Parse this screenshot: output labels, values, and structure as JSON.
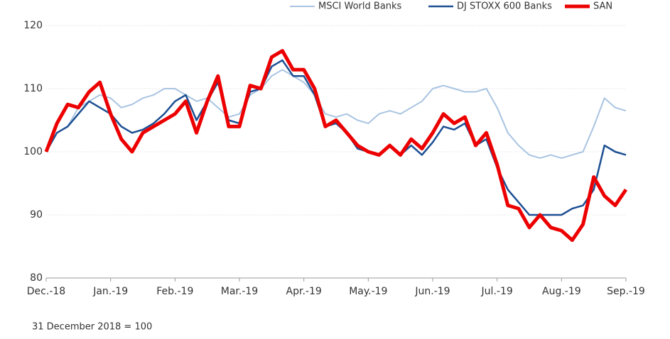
{
  "chart_data": {
    "type": "line",
    "note": "31 December 2018 = 100",
    "categories": [
      "Dec.-18",
      null,
      null,
      null,
      null,
      null,
      "Jan.-19",
      null,
      null,
      null,
      null,
      null,
      "Feb.-19",
      null,
      null,
      null,
      null,
      null,
      "Mar.-19",
      null,
      null,
      null,
      null,
      null,
      "Apr.-19",
      null,
      null,
      null,
      null,
      null,
      "May.-19",
      null,
      null,
      null,
      null,
      null,
      "Jun.-19",
      null,
      null,
      null,
      null,
      null,
      "Jul.-19",
      null,
      null,
      null,
      null,
      null,
      "Aug.-19",
      null,
      null,
      null,
      null,
      null,
      "Sep.-19"
    ],
    "ylim": [
      80,
      120
    ],
    "yticks": [
      80,
      90,
      100,
      110,
      120
    ],
    "grid": true,
    "series": [
      {
        "name": "MSCI World Banks",
        "color": "#a9c4e2",
        "width": 2,
        "values": [
          100,
          103,
          104,
          107,
          108,
          109,
          108.5,
          107,
          107.5,
          108.5,
          109,
          110,
          110,
          109,
          108,
          108.5,
          107,
          105.5,
          106,
          109,
          110,
          112,
          113,
          112,
          111,
          109,
          106,
          105.5,
          106,
          105,
          104.5,
          106,
          106.5,
          106,
          107,
          108,
          110,
          110.5,
          110,
          109.5,
          109.5,
          110,
          107,
          103,
          101,
          99.5,
          99,
          99.5,
          99,
          99.5,
          100,
          104,
          108.5,
          107,
          106.5
        ]
      },
      {
        "name": "DJ STOXX 600 Banks",
        "color": "#1c4f93",
        "width": 2.5,
        "values": [
          100,
          103,
          104,
          106,
          108,
          107,
          106,
          104,
          103,
          103.5,
          104.5,
          106,
          108,
          109,
          105,
          108,
          111,
          105,
          104.5,
          109.5,
          110,
          113.5,
          114.5,
          112,
          112,
          109,
          104,
          104.5,
          103,
          100.5,
          100,
          99.5,
          101,
          99.5,
          101,
          99.5,
          101.5,
          104,
          103.5,
          104.5,
          101,
          102,
          97.5,
          94,
          92,
          90,
          90,
          90,
          90,
          91,
          91.5,
          94,
          101,
          100,
          99.5
        ]
      },
      {
        "name": "SAN",
        "color": "#ec0000",
        "width": 5,
        "values": [
          100,
          104.5,
          107.5,
          107,
          109.5,
          111,
          106,
          102,
          100,
          103,
          104,
          105,
          106,
          108,
          103,
          108,
          112,
          104,
          104,
          110.5,
          110,
          115,
          116,
          113,
          113,
          110,
          104,
          105,
          103,
          101,
          100,
          99.5,
          101,
          99.5,
          102,
          100.5,
          103,
          106,
          104.5,
          105.5,
          101,
          103,
          98,
          91.5,
          91,
          88,
          90,
          88,
          87.5,
          86,
          88.5,
          96,
          93,
          91.5,
          94
        ]
      }
    ]
  }
}
